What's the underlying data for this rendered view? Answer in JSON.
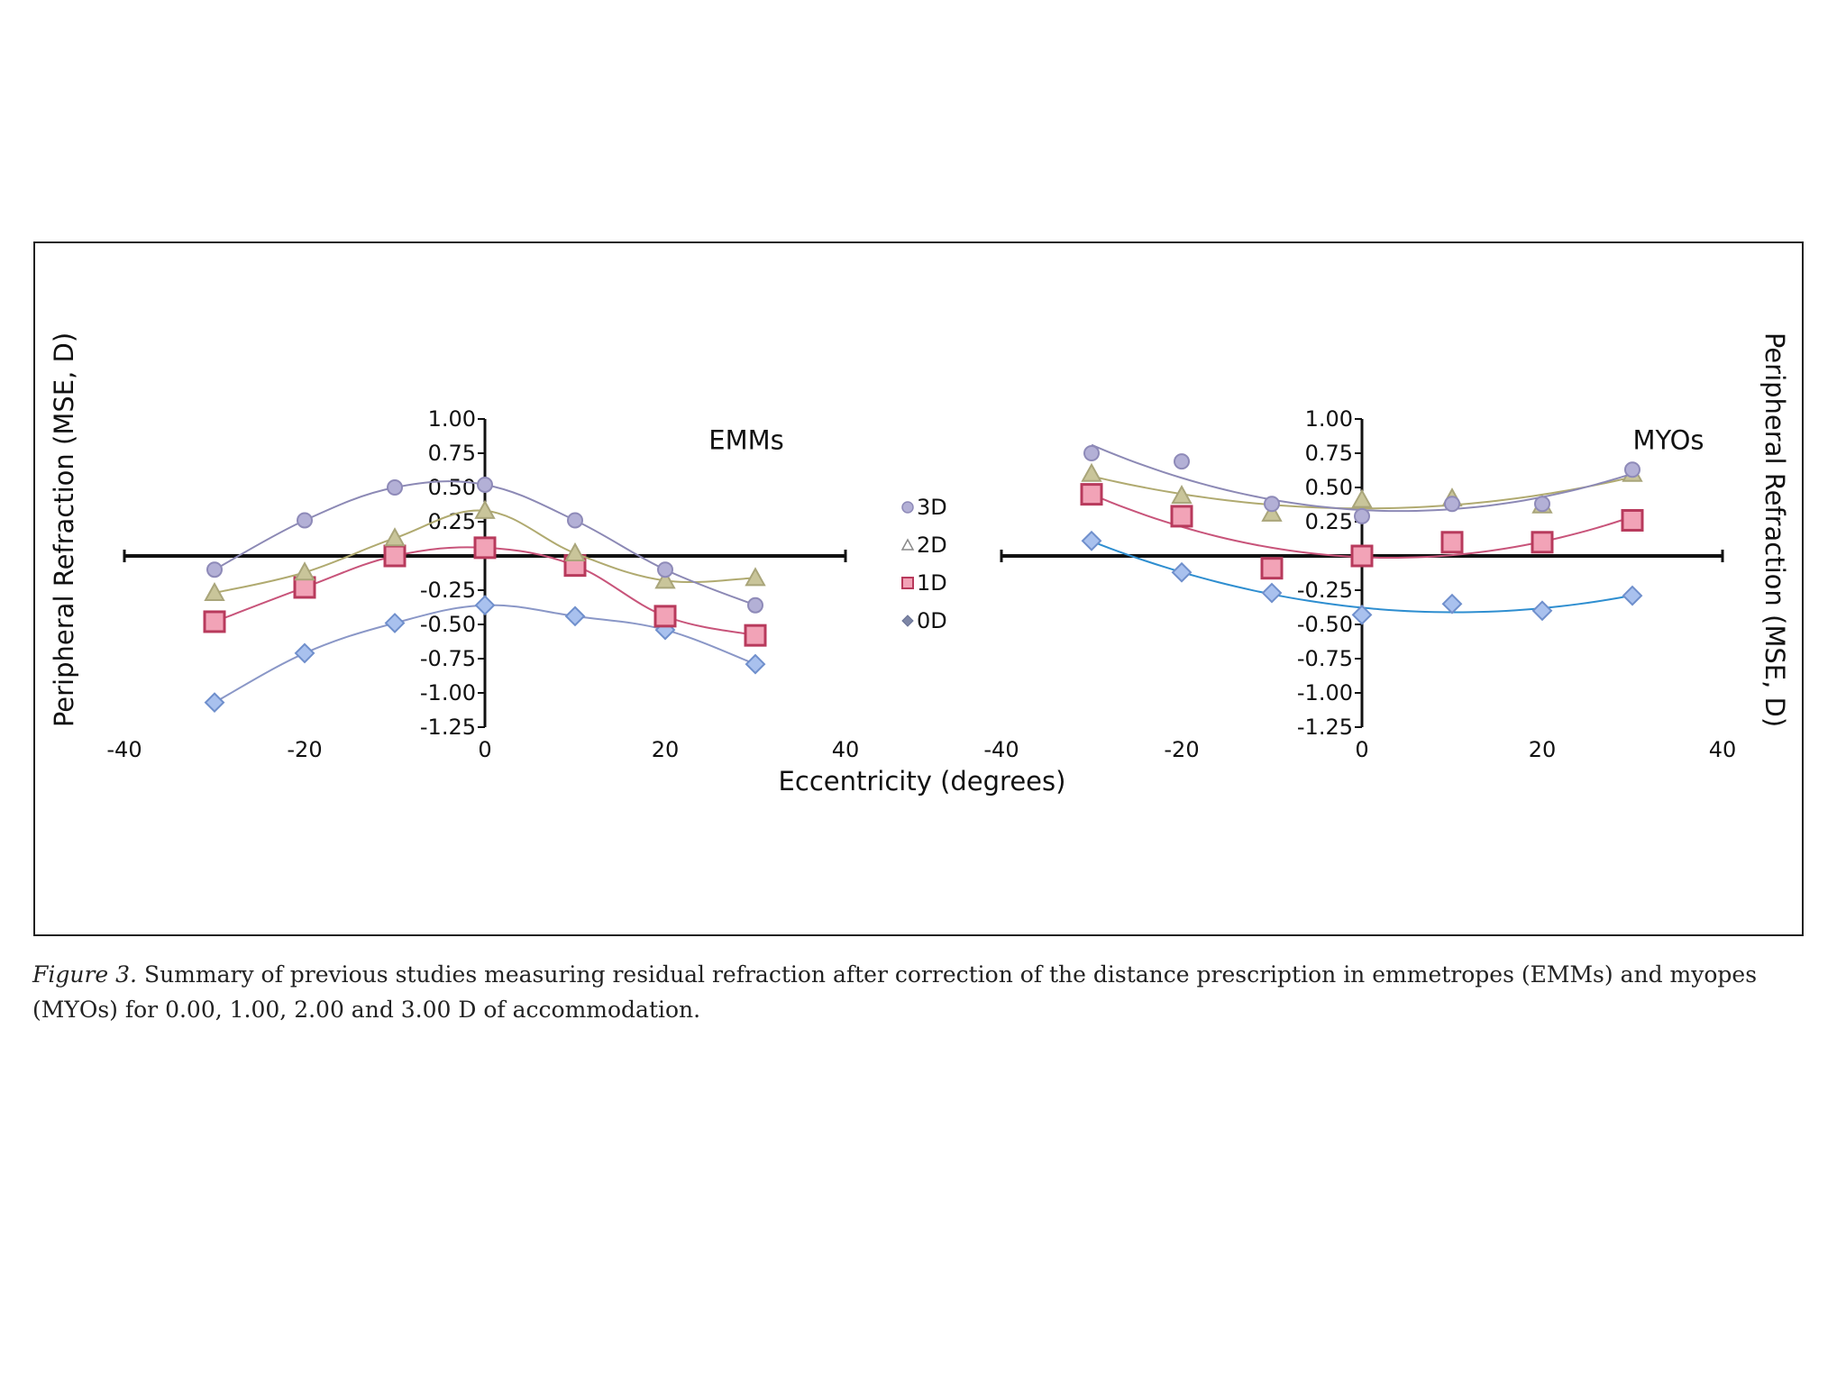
{
  "chart_data": {
    "type": "scatter",
    "shared_x_label": "Eccentricity (degrees)",
    "legend": [
      {
        "name": "3D",
        "marker": "circle"
      },
      {
        "name": "2D",
        "marker": "triangle"
      },
      {
        "name": "1D",
        "marker": "square"
      },
      {
        "name": "0D",
        "marker": "diamond"
      }
    ],
    "colors": {
      "3D": {
        "fill": "#b3b0d6",
        "stroke": "#8e8ab8",
        "line": "#8c89b5"
      },
      "2D": {
        "fill": "#c9c59a",
        "stroke": "#a9a57a",
        "line": "#b0aa70"
      },
      "1D": {
        "fill": "#f2a3b7",
        "stroke": "#b83a5c",
        "line": "#c8547a"
      },
      "0D": {
        "fill": "#a9c1ee",
        "stroke": "#6f8fcc",
        "lineEMM": "#8a97c7",
        "lineMYO": "#2e8ed0"
      }
    },
    "panels": [
      {
        "label": "EMMs",
        "ylabel": "Peripheral Refraction (MSE, D)",
        "xlim": [
          -40,
          40
        ],
        "ylim": [
          -1.25,
          1.0
        ],
        "xticks": [
          "-40",
          "-20",
          "0",
          "20",
          "40"
        ],
        "yticks": [
          "1.00",
          "0.75",
          "0.50",
          "0.25",
          "-0.25",
          "-0.50",
          "-0.75",
          "-1.00",
          "-1.25"
        ],
        "series": [
          {
            "name": "3D",
            "x": [
              -30,
              -20,
              -10,
              0,
              10,
              20,
              30
            ],
            "y": [
              -0.1,
              0.26,
              0.5,
              0.52,
              0.26,
              -0.1,
              -0.36
            ]
          },
          {
            "name": "2D",
            "x": [
              -30,
              -20,
              -10,
              0,
              10,
              20,
              30
            ],
            "y": [
              -0.27,
              -0.12,
              0.13,
              0.33,
              0.02,
              -0.18,
              -0.16
            ]
          },
          {
            "name": "1D",
            "x": [
              -30,
              -20,
              -10,
              0,
              10,
              20,
              30
            ],
            "y": [
              -0.48,
              -0.23,
              0.0,
              0.06,
              -0.07,
              -0.44,
              -0.58
            ]
          },
          {
            "name": "0D",
            "x": [
              -30,
              -20,
              -10,
              0,
              10,
              20,
              30
            ],
            "y": [
              -1.07,
              -0.71,
              -0.49,
              -0.36,
              -0.44,
              -0.54,
              -0.79
            ]
          }
        ]
      },
      {
        "label": "MYOs",
        "ylabel": "Peripheral Refraction (MSE, D)",
        "xlim": [
          -40,
          40
        ],
        "ylim": [
          -1.25,
          1.0
        ],
        "xticks": [
          "-40",
          "-20",
          "0",
          "20",
          "40"
        ],
        "yticks": [
          "1.00",
          "0.75",
          "0.50",
          "0.25",
          "-0.25",
          "-0.50",
          "-0.75",
          "-1.00",
          "-1.25"
        ],
        "series": [
          {
            "name": "3D",
            "x": [
              -30,
              -20,
              -10,
              0,
              10,
              20,
              30
            ],
            "y": [
              0.75,
              0.69,
              0.38,
              0.29,
              0.38,
              0.38,
              0.63
            ]
          },
          {
            "name": "2D",
            "x": [
              -30,
              -20,
              -10,
              0,
              10,
              20,
              30
            ],
            "y": [
              0.6,
              0.44,
              0.31,
              0.41,
              0.42,
              0.37,
              0.6
            ]
          },
          {
            "name": "1D",
            "x": [
              -30,
              -20,
              -10,
              0,
              10,
              20,
              30
            ],
            "y": [
              0.45,
              0.29,
              -0.09,
              0.0,
              0.1,
              0.1,
              0.26
            ]
          },
          {
            "name": "0D",
            "x": [
              -30,
              -20,
              -10,
              0,
              10,
              20,
              30
            ],
            "y": [
              0.11,
              -0.12,
              -0.27,
              -0.43,
              -0.35,
              -0.4,
              -0.29
            ]
          }
        ]
      }
    ]
  },
  "caption": {
    "label": "Figure 3.",
    "text": "Summary of previous studies measuring residual refraction after correction of the distance prescription in emmetropes (EMMs) and myopes (MYOs) for 0.00, 1.00, 2.00 and 3.00 D of accommodation."
  }
}
